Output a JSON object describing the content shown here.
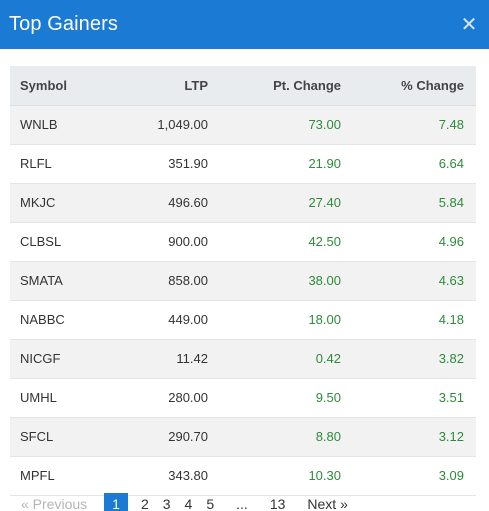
{
  "header": {
    "title": "Top Gainers",
    "close_symbol": "✕"
  },
  "table": {
    "columns": [
      "Symbol",
      "LTP",
      "Pt. Change",
      "% Change"
    ],
    "rows": [
      [
        "WNLB",
        "1,049.00",
        "73.00",
        "7.48"
      ],
      [
        "RLFL",
        "351.90",
        "21.90",
        "6.64"
      ],
      [
        "MKJC",
        "496.60",
        "27.40",
        "5.84"
      ],
      [
        "CLBSL",
        "900.00",
        "42.50",
        "4.96"
      ],
      [
        "SMATA",
        "858.00",
        "38.00",
        "4.63"
      ],
      [
        "NABBC",
        "449.00",
        "18.00",
        "4.18"
      ],
      [
        "NICGF",
        "11.42",
        "0.42",
        "3.82"
      ],
      [
        "UMHL",
        "280.00",
        "9.50",
        "3.51"
      ],
      [
        "SFCL",
        "290.70",
        "8.80",
        "3.12"
      ],
      [
        "MPFL",
        "343.80",
        "10.30",
        "3.09"
      ]
    ]
  },
  "pagination": {
    "previous": "« Previous",
    "pages": [
      "1",
      "2",
      "3",
      "4",
      "5"
    ],
    "ellipsis": "...",
    "last": "13",
    "next": "Next »",
    "current": "1"
  },
  "colors": {
    "header_bg": "#1a7ad4",
    "positive": "#2e8b3a",
    "header_row_bg": "#e9ecef"
  }
}
